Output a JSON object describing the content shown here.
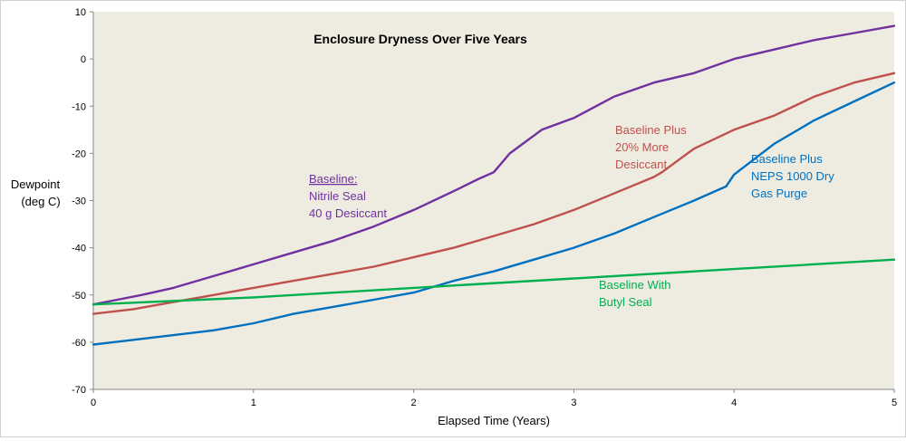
{
  "chart_data": {
    "type": "line",
    "title": "Enclosure Dryness Over Five Years",
    "xlabel": "Elapsed Time (Years)",
    "ylabel_lines": [
      "Dewpoint",
      "(deg C)"
    ],
    "xlim": [
      0,
      5
    ],
    "ylim": [
      -70,
      10
    ],
    "xticks": [
      0,
      1,
      2,
      3,
      4,
      5
    ],
    "yticks": [
      -70,
      -60,
      -50,
      -40,
      -30,
      -20,
      -10,
      0,
      10
    ],
    "plot_background": "#eeece1",
    "grid": false,
    "series": [
      {
        "label_lines": [
          "Baseline:",
          "Nitrile Seal",
          "40 g Desiccant"
        ],
        "color": "#7030a0",
        "x": [
          0,
          0.15,
          0.3,
          0.5,
          0.75,
          1.0,
          1.25,
          1.5,
          1.75,
          2.0,
          2.25,
          2.4,
          2.5,
          2.6,
          2.8,
          3.0,
          3.25,
          3.5,
          3.75,
          4.0,
          4.25,
          4.5,
          4.75,
          5.0
        ],
        "y": [
          -52,
          -51,
          -50,
          -48.5,
          -46,
          -43.5,
          -41,
          -38.5,
          -35.5,
          -32,
          -28,
          -25.5,
          -24,
          -20,
          -15,
          -12.5,
          -8,
          -5,
          -3,
          0,
          2,
          4,
          5.5,
          7
        ]
      },
      {
        "label_lines": [
          "Baseline Plus",
          "20% More",
          "Desiccant"
        ],
        "color": "#c0504d",
        "x": [
          0,
          0.25,
          0.5,
          0.75,
          1.0,
          1.25,
          1.5,
          1.75,
          2.0,
          2.25,
          2.5,
          2.75,
          3.0,
          3.25,
          3.5,
          3.55,
          3.75,
          4.0,
          4.25,
          4.5,
          4.75,
          5.0
        ],
        "y": [
          -54,
          -53,
          -51.5,
          -50,
          -48.5,
          -47,
          -45.5,
          -44,
          -42,
          -40,
          -37.5,
          -35,
          -32,
          -28.5,
          -25,
          -24,
          -19,
          -15,
          -12,
          -8,
          -5,
          -3
        ]
      },
      {
        "label_lines": [
          "Baseline Plus",
          "NEPS 1000 Dry",
          "Gas Purge"
        ],
        "color": "#0070c0",
        "x": [
          0,
          0.25,
          0.5,
          0.75,
          1.0,
          1.25,
          1.5,
          1.75,
          2.0,
          2.25,
          2.5,
          2.75,
          3.0,
          3.25,
          3.5,
          3.75,
          3.95,
          4.0,
          4.25,
          4.5,
          4.75,
          5.0
        ],
        "y": [
          -60.5,
          -59.5,
          -58.5,
          -57.5,
          -56,
          -54,
          -52.5,
          -51,
          -49.5,
          -47,
          -45,
          -42.5,
          -40,
          -37,
          -33.5,
          -30,
          -27,
          -24.5,
          -18,
          -13,
          -9,
          -5
        ]
      },
      {
        "label_lines": [
          "Baseline With",
          "Butyl Seal"
        ],
        "color": "#00b050",
        "x": [
          0,
          1,
          2,
          3,
          4,
          5
        ],
        "y": [
          -52,
          -50.5,
          -48.5,
          -46.5,
          -44.5,
          -42.5
        ]
      }
    ]
  }
}
